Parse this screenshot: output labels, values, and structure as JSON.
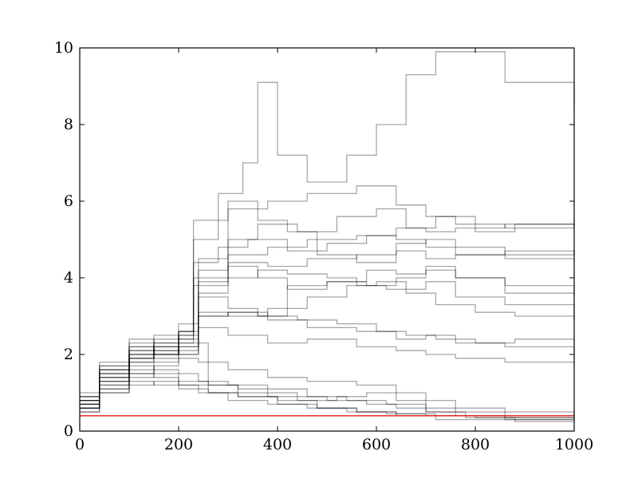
{
  "chart_data": {
    "type": "line",
    "title": "",
    "xlabel": "",
    "ylabel": "",
    "xlim": [
      0,
      1000
    ],
    "ylim": [
      0,
      10
    ],
    "x_ticks": [
      0,
      200,
      400,
      600,
      800,
      1000
    ],
    "y_ticks": [
      0,
      2,
      4,
      6,
      8,
      10
    ],
    "x_tick_labels": [
      "0",
      "200",
      "400",
      "600",
      "800",
      "1000"
    ],
    "y_tick_labels": [
      "0",
      "2",
      "4",
      "6",
      "8",
      "10"
    ],
    "grid": false,
    "legend": "none",
    "series_color": "#000000",
    "series_opacity": 0.35,
    "reference_line": {
      "y": 0.4,
      "color": "#e41a1c"
    },
    "series": [
      {
        "x": [
          0,
          40,
          100,
          150,
          200,
          230,
          300,
          380,
          460,
          560,
          640,
          700,
          760,
          860,
          1000
        ],
        "values": [
          0.8,
          1.6,
          2.2,
          2.0,
          2.3,
          3.8,
          4.6,
          4.8,
          5.0,
          5.1,
          5.3,
          5.2,
          5.3,
          5.4,
          5.5
        ]
      },
      {
        "x": [
          0,
          40,
          100,
          150,
          200,
          240,
          300,
          380,
          460,
          560,
          640,
          700,
          760,
          860,
          1000
        ],
        "values": [
          0.6,
          1.3,
          1.9,
          2.0,
          2.1,
          4.2,
          4.4,
          4.3,
          4.5,
          4.6,
          4.7,
          4.5,
          4.6,
          4.7,
          4.6
        ]
      },
      {
        "x": [
          0,
          40,
          100,
          150,
          200,
          230,
          300,
          380,
          460,
          560,
          640,
          700,
          760,
          860,
          1000
        ],
        "values": [
          0.9,
          1.8,
          2.4,
          2.1,
          2.6,
          5.5,
          5.8,
          6.0,
          6.2,
          6.4,
          5.9,
          5.6,
          5.4,
          5.3,
          5.4
        ]
      },
      {
        "x": [
          0,
          40,
          100,
          150,
          200,
          240,
          300,
          360,
          420,
          500,
          580,
          640,
          700,
          760,
          860,
          1000
        ],
        "values": [
          0.7,
          1.5,
          2.0,
          2.2,
          2.0,
          3.5,
          3.2,
          3.0,
          3.8,
          3.9,
          4.2,
          4.1,
          4.3,
          4.0,
          3.6,
          3.5
        ]
      },
      {
        "x": [
          0,
          40,
          100,
          150,
          200,
          230,
          300,
          360,
          420,
          480,
          560,
          640,
          700,
          760,
          860,
          1000
        ],
        "values": [
          1.0,
          1.7,
          2.2,
          1.9,
          2.4,
          4.0,
          6.0,
          5.5,
          5.2,
          4.6,
          4.4,
          4.9,
          5.0,
          4.8,
          4.6,
          4.7
        ]
      },
      {
        "x": [
          0,
          40,
          100,
          150,
          200,
          240,
          300,
          380,
          460,
          560,
          640,
          700,
          760,
          860,
          1000
        ],
        "values": [
          0.5,
          1.2,
          1.6,
          1.8,
          2.2,
          2.7,
          2.5,
          2.3,
          2.4,
          2.2,
          2.1,
          2.0,
          1.9,
          1.8,
          1.7
        ]
      },
      {
        "x": [
          0,
          40,
          100,
          150,
          200,
          260,
          320,
          380,
          440,
          500,
          580,
          640,
          700,
          760,
          860,
          1000
        ],
        "values": [
          0.6,
          1.1,
          1.5,
          1.4,
          1.3,
          1.2,
          1.1,
          1.0,
          0.9,
          0.8,
          0.7,
          0.6,
          0.5,
          0.4,
          0.35,
          0.3
        ]
      },
      {
        "x": [
          0,
          40,
          100,
          150,
          200,
          260,
          320,
          400,
          480,
          560,
          640,
          720,
          800,
          880,
          1000
        ],
        "values": [
          0.7,
          1.3,
          1.7,
          1.5,
          1.2,
          1.0,
          0.9,
          0.7,
          0.6,
          0.5,
          0.45,
          0.4,
          0.35,
          0.3,
          0.3
        ]
      },
      {
        "x": [
          0,
          40,
          100,
          150,
          200,
          240,
          300,
          380,
          460,
          560,
          640,
          700,
          760,
          860,
          1000
        ],
        "values": [
          0.8,
          1.4,
          1.9,
          2.3,
          2.8,
          3.0,
          3.1,
          2.9,
          2.7,
          2.6,
          2.4,
          2.5,
          2.3,
          2.2,
          2.0
        ]
      },
      {
        "x": [
          0,
          40,
          100,
          150,
          200,
          260,
          320,
          400,
          480,
          560,
          640,
          720,
          800,
          880,
          1000
        ],
        "values": [
          0.6,
          1.0,
          1.3,
          1.2,
          1.1,
          1.0,
          0.9,
          0.8,
          0.6,
          0.5,
          0.4,
          0.3,
          0.3,
          0.25,
          0.25
        ]
      },
      {
        "x": [
          0,
          40,
          100,
          150,
          200,
          230,
          280,
          340,
          420,
          500,
          580,
          640,
          700,
          760,
          860,
          1000
        ],
        "values": [
          0.9,
          1.6,
          2.0,
          2.2,
          2.5,
          4.4,
          4.8,
          5.0,
          4.7,
          4.9,
          5.1,
          5.0,
          4.8,
          4.6,
          4.5,
          4.4
        ]
      },
      {
        "x": [
          0,
          40,
          100,
          150,
          200,
          240,
          300,
          360,
          420,
          500,
          560,
          620,
          700,
          760,
          860,
          1000
        ],
        "values": [
          0.7,
          1.4,
          1.8,
          2.0,
          2.5,
          3.6,
          4.0,
          4.2,
          4.1,
          4.0,
          3.8,
          3.7,
          3.9,
          3.5,
          3.3,
          2.9
        ]
      },
      {
        "x": [
          0,
          40,
          100,
          150,
          200,
          230,
          280,
          330,
          360,
          400,
          460,
          540,
          600,
          660,
          720,
          780,
          860,
          1000
        ],
        "values": [
          0.8,
          1.6,
          2.1,
          2.3,
          2.6,
          5.0,
          6.2,
          7.0,
          9.1,
          7.2,
          6.5,
          7.2,
          8.0,
          9.3,
          9.9,
          9.9,
          9.1,
          8.4
        ]
      },
      {
        "x": [
          0,
          40,
          100,
          150,
          200,
          240,
          300,
          380,
          460,
          560,
          640,
          700,
          760,
          860,
          1000
        ],
        "values": [
          0.6,
          1.2,
          1.5,
          1.7,
          1.9,
          1.8,
          1.6,
          1.4,
          1.3,
          1.2,
          1.0,
          0.8,
          0.6,
          0.5,
          0.4
        ]
      },
      {
        "x": [
          0,
          40,
          100,
          150,
          200,
          240,
          300,
          360,
          440,
          520,
          600,
          660,
          720,
          800,
          880,
          1000
        ],
        "values": [
          0.9,
          1.5,
          2.0,
          2.4,
          2.6,
          4.5,
          5.0,
          5.4,
          5.2,
          5.6,
          5.8,
          5.3,
          5.6,
          5.2,
          5.4,
          5.3
        ]
      },
      {
        "x": [
          0,
          40,
          100,
          150,
          200,
          240,
          300,
          380,
          460,
          540,
          620,
          700,
          780,
          860,
          1000
        ],
        "values": [
          0.5,
          1.1,
          1.4,
          1.6,
          1.5,
          1.3,
          1.2,
          1.1,
          0.9,
          0.8,
          0.7,
          0.5,
          0.4,
          0.35,
          0.3
        ]
      },
      {
        "x": [
          0,
          40,
          100,
          150,
          200,
          240,
          300,
          380,
          460,
          540,
          600,
          660,
          720,
          800,
          880,
          1000
        ],
        "values": [
          0.8,
          1.7,
          2.3,
          2.5,
          2.4,
          3.1,
          3.0,
          3.2,
          3.5,
          3.8,
          3.9,
          3.6,
          3.3,
          3.1,
          3.0,
          2.9
        ]
      },
      {
        "x": [
          0,
          40,
          100,
          150,
          200,
          240,
          300,
          360,
          420,
          500,
          580,
          640,
          700,
          760,
          860,
          1000
        ],
        "values": [
          0.7,
          1.3,
          1.8,
          2.1,
          2.2,
          3.9,
          4.3,
          4.0,
          3.7,
          3.9,
          3.8,
          4.0,
          4.2,
          4.0,
          3.8,
          3.6
        ]
      },
      {
        "x": [
          0,
          40,
          100,
          150,
          200,
          240,
          300,
          380,
          460,
          540,
          620,
          700,
          780,
          860,
          1000
        ],
        "values": [
          0.6,
          1.0,
          1.2,
          1.3,
          1.2,
          1.0,
          0.8,
          0.7,
          0.6,
          0.5,
          0.45,
          0.4,
          0.35,
          0.3,
          0.3
        ]
      },
      {
        "x": [
          0,
          40,
          100,
          150,
          200,
          240,
          300,
          360,
          440,
          520,
          600,
          660,
          720,
          800,
          880,
          1000
        ],
        "values": [
          0.8,
          1.5,
          1.9,
          2.2,
          2.0,
          3.0,
          3.1,
          3.0,
          2.9,
          2.8,
          2.6,
          2.5,
          2.4,
          2.3,
          2.4,
          2.3
        ]
      },
      {
        "x": [
          0,
          40,
          100,
          150,
          200,
          260,
          320,
          380,
          440,
          520,
          580,
          640,
          700,
          760,
          860,
          1000
        ],
        "values": [
          0.7,
          1.4,
          2.1,
          2.0,
          2.3,
          1.2,
          1.0,
          0.9,
          0.8,
          0.9,
          1.0,
          0.8,
          0.6,
          0.5,
          0.4,
          0.35
        ]
      }
    ]
  }
}
